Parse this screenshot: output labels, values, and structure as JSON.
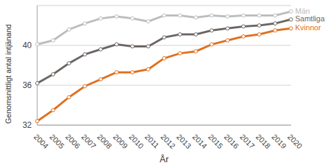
{
  "chart_data": {
    "type": "line",
    "x_label": "År",
    "y_label": "Genomsnittligt antal intjänand",
    "categories": [
      "2004",
      "2005",
      "2006",
      "2007",
      "2008",
      "2009",
      "2010",
      "2011",
      "2012",
      "2013",
      "2014",
      "2015",
      "2016",
      "2017",
      "2018",
      "2019",
      "2020"
    ],
    "series": [
      {
        "name": "Män",
        "color": "#bdbdbd",
        "values": [
          40.1,
          40.5,
          41.6,
          42.2,
          42.7,
          42.9,
          42.7,
          42.4,
          43.0,
          43.0,
          42.8,
          43.0,
          42.9,
          43.0,
          43.0,
          43.0,
          43.4
        ]
      },
      {
        "name": "Samtliga",
        "color": "#6b6663",
        "values": [
          36.2,
          37.1,
          38.2,
          39.1,
          39.6,
          40.1,
          39.9,
          39.9,
          40.8,
          41.1,
          41.1,
          41.5,
          41.7,
          41.9,
          42.0,
          42.2,
          42.6
        ]
      },
      {
        "name": "Kvinnor",
        "color": "#e0701d",
        "values": [
          32.4,
          33.5,
          34.8,
          35.9,
          36.6,
          37.3,
          37.3,
          37.6,
          38.7,
          39.2,
          39.4,
          40.1,
          40.5,
          40.9,
          41.1,
          41.5,
          41.7
        ]
      }
    ],
    "ylim": [
      32,
      44
    ],
    "yticks": [
      32,
      36,
      40
    ],
    "grid": true,
    "marker": "circle"
  }
}
